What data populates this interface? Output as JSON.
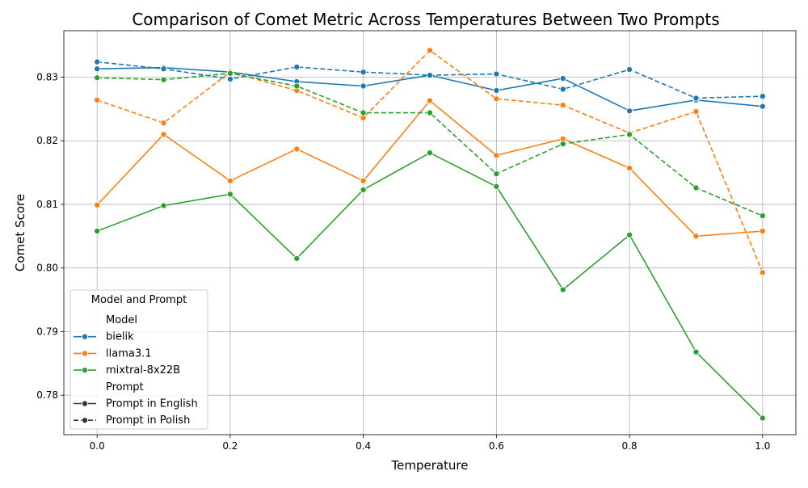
{
  "chart_data": {
    "type": "line",
    "title": "Comparison of Comet Metric Across Temperatures Between Two Prompts",
    "xlabel": "Temperature",
    "ylabel": "Comet Score",
    "xlim": [
      -0.05,
      1.05
    ],
    "ylim": [
      0.7738,
      0.8373
    ],
    "x": [
      0.0,
      0.1,
      0.2,
      0.3,
      0.4,
      0.5,
      0.6,
      0.7,
      0.8,
      0.9,
      1.0
    ],
    "x_ticks": [
      "0.0",
      "0.2",
      "0.4",
      "0.6",
      "0.8",
      "1.0"
    ],
    "x_tick_values": [
      0.0,
      0.2,
      0.4,
      0.6,
      0.8,
      1.0
    ],
    "y_ticks": [
      "0.78",
      "0.79",
      "0.80",
      "0.81",
      "0.82",
      "0.83"
    ],
    "y_tick_values": [
      0.78,
      0.79,
      0.8,
      0.81,
      0.82,
      0.83
    ],
    "grid": true,
    "legend": {
      "title": "Model and Prompt",
      "placement": "lower-left",
      "model_heading": "Model",
      "prompt_heading": "Prompt",
      "models": [
        {
          "label": "bielik",
          "color": "#1f77b4"
        },
        {
          "label": "llama3.1",
          "color": "#ff7f0e"
        },
        {
          "label": "mixtral-8x22B",
          "color": "#2ca02c"
        }
      ],
      "prompts": [
        {
          "label": "Prompt in English",
          "style": "solid"
        },
        {
          "label": "Prompt in Polish",
          "style": "dashed"
        }
      ]
    },
    "series": [
      {
        "model": "bielik",
        "prompt": "Prompt in English",
        "color": "#1f77b4",
        "style": "solid",
        "values": [
          0.8313,
          0.8315,
          0.8308,
          0.8293,
          0.8286,
          0.8303,
          0.8279,
          0.8298,
          0.8247,
          0.8264,
          0.8254
        ]
      },
      {
        "model": "bielik",
        "prompt": "Prompt in Polish",
        "color": "#1f77b4",
        "style": "dashed",
        "values": [
          0.8324,
          0.8313,
          0.8297,
          0.8316,
          0.8308,
          0.8303,
          0.8305,
          0.8281,
          0.8312,
          0.8267,
          0.827
        ]
      },
      {
        "model": "llama3.1",
        "prompt": "Prompt in English",
        "color": "#ff7f0e",
        "style": "solid",
        "values": [
          0.8099,
          0.821,
          0.8137,
          0.8187,
          0.8137,
          0.8263,
          0.8177,
          0.8203,
          0.8157,
          0.805,
          0.8058
        ]
      },
      {
        "model": "llama3.1",
        "prompt": "Prompt in Polish",
        "color": "#ff7f0e",
        "style": "dashed",
        "values": [
          0.8264,
          0.8228,
          0.8308,
          0.8279,
          0.8236,
          0.8342,
          0.8266,
          0.8256,
          0.8212,
          0.8246,
          0.7993
        ]
      },
      {
        "model": "mixtral-8x22B",
        "prompt": "Prompt in English",
        "color": "#2ca02c",
        "style": "solid",
        "values": [
          0.8058,
          0.8098,
          0.8116,
          0.8015,
          0.8123,
          0.8181,
          0.8128,
          0.7966,
          0.8052,
          0.7868,
          0.7764
        ]
      },
      {
        "model": "mixtral-8x22B",
        "prompt": "Prompt in Polish",
        "color": "#2ca02c",
        "style": "dashed",
        "values": [
          0.8299,
          0.8296,
          0.8306,
          0.8286,
          0.8244,
          0.8244,
          0.8148,
          0.8195,
          0.821,
          0.8126,
          0.8082
        ]
      }
    ]
  }
}
